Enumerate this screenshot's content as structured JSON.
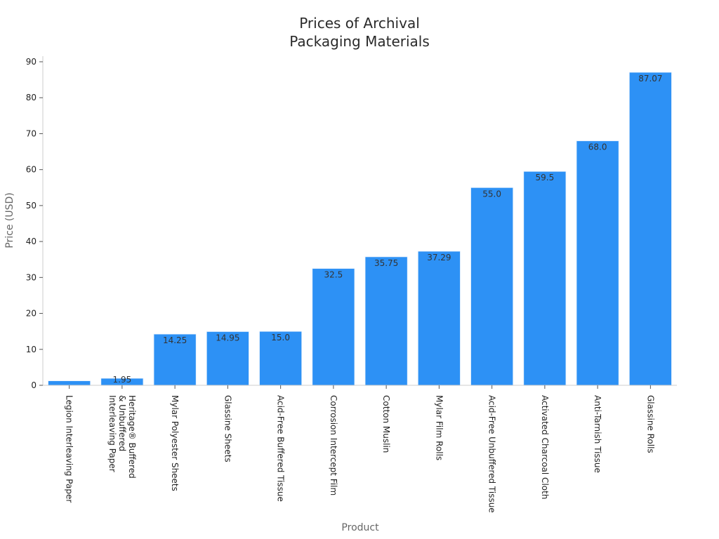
{
  "chart_data": {
    "type": "bar",
    "title_lines": [
      "Prices of Archival",
      "Packaging Materials"
    ],
    "xlabel": "Product",
    "ylabel": "Price (USD)",
    "ylim": [
      0,
      90
    ],
    "yticks": [
      0,
      10,
      20,
      30,
      40,
      50,
      60,
      70,
      80,
      90
    ],
    "grid": false,
    "bar_color": "#2d91f5",
    "categories": [
      [
        "Legion Interleaving Paper"
      ],
      [
        "Heritage® Buffered",
        "& Unbuffered",
        "Interleaving Paper"
      ],
      [
        "Mylar Polyester Sheets"
      ],
      [
        "Glassine Sheets"
      ],
      [
        "Acid-Free Buffered Tissue"
      ],
      [
        "Corrosion Intercept Film"
      ],
      [
        "Cotton Muslin"
      ],
      [
        "Mylar Film Rolls"
      ],
      [
        "Acid-Free Unbuffered Tissue"
      ],
      [
        "Activated Charcoal Cloth"
      ],
      [
        "Anti-Tarnish Tissue"
      ],
      [
        "Glassine Rolls"
      ]
    ],
    "values": [
      1.25,
      1.95,
      14.25,
      14.95,
      15.0,
      32.5,
      35.75,
      37.29,
      55.0,
      59.5,
      68.0,
      87.07
    ],
    "data_labels": [
      "",
      "1.95",
      "14.25",
      "14.95",
      "15.0",
      "32.5",
      "35.75",
      "37.29",
      "55.0",
      "59.5",
      "68.0",
      "87.07"
    ]
  }
}
